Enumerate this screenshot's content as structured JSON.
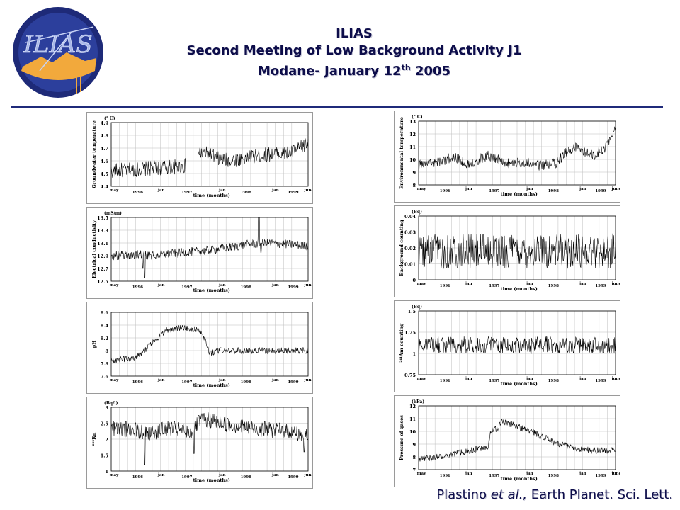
{
  "header": {
    "line1": "ILIAS",
    "line2": "Second Meeting of Low Background Activity J1",
    "line3_pre": "Modane- January 12",
    "line3_sup": "th",
    "line3_post": " 2005"
  },
  "logo": {
    "text": "ILIAS",
    "colors": {
      "ring": "#1e2a78",
      "sky": "#2c3f9c",
      "ground": "#f2a93c",
      "letters": "#a9b8e8"
    }
  },
  "citation": {
    "authors": "Plastino ",
    "etal": "et al.,",
    "journal": " Earth Planet. Sci. Lett."
  },
  "colors": {
    "accent": "#1f2a7a",
    "title_text": "#0d0d4a",
    "series": "#000000",
    "grid": "#bdbdbd"
  },
  "chart_data": [
    {
      "type": "line",
      "ylabel": "Groundwater temperature",
      "unit": "(° C)",
      "ylim": [
        4.4,
        4.9
      ],
      "yticks": [
        "4.9",
        "4.8",
        "4.7",
        "4.6",
        "4.5",
        "4.4"
      ],
      "xticks": [
        "may",
        "1996",
        "jan",
        "1997",
        "jan",
        "1998",
        "jan",
        "1999",
        "june"
      ],
      "xlabel": "time (months)",
      "noise": 0.06,
      "gap": [
        0.38,
        0.44
      ],
      "x": [
        0,
        0.1,
        0.2,
        0.3,
        0.38,
        0.44,
        0.5,
        0.55,
        0.6,
        0.7,
        0.8,
        0.9,
        0.95,
        1.0
      ],
      "y": [
        4.52,
        4.53,
        4.54,
        4.55,
        4.56,
        4.66,
        4.65,
        4.61,
        4.6,
        4.63,
        4.65,
        4.66,
        4.69,
        4.74
      ]
    },
    {
      "type": "line",
      "ylabel": "Environmental temperature",
      "unit": "(° C)",
      "ylim": [
        8,
        13
      ],
      "yticks": [
        "13",
        "12",
        "11",
        "10",
        "9",
        "8"
      ],
      "xticks": [
        "may",
        "1996",
        "jan",
        "1997",
        "jan",
        "1998",
        "jan",
        "1999",
        "june"
      ],
      "xlabel": "time (months)",
      "noise": 0.4,
      "x": [
        0,
        0.1,
        0.18,
        0.25,
        0.35,
        0.45,
        0.55,
        0.6,
        0.7,
        0.75,
        0.8,
        0.85,
        0.9,
        0.95,
        0.98,
        1.0
      ],
      "y": [
        9.6,
        9.8,
        10.2,
        9.6,
        10.3,
        9.7,
        9.8,
        9.5,
        9.7,
        10.6,
        10.9,
        10.5,
        10.3,
        11.0,
        11.8,
        12.5
      ]
    },
    {
      "type": "line",
      "ylabel": "Electrical conductivity",
      "unit": "(mS/m)",
      "ylim": [
        12.5,
        13.5
      ],
      "yticks": [
        "13.5",
        "13.3",
        "13.1",
        "12.9",
        "12.7",
        "12.5"
      ],
      "xticks": [
        "may",
        "1996",
        "jan",
        "1997",
        "jan",
        "1998",
        "jan",
        "1999",
        "june"
      ],
      "xlabel": "time (months)",
      "noise": 0.07,
      "spikes": [
        [
          0.17,
          12.55
        ],
        [
          0.16,
          12.7
        ],
        [
          0.75,
          13.5
        ],
        [
          0.76,
          12.95
        ]
      ],
      "x": [
        0,
        0.15,
        0.2,
        0.3,
        0.4,
        0.5,
        0.6,
        0.7,
        0.8,
        0.9,
        1.0
      ],
      "y": [
        12.9,
        12.92,
        12.9,
        12.93,
        12.96,
        12.98,
        13.03,
        13.08,
        13.1,
        13.08,
        13.05
      ]
    },
    {
      "type": "line",
      "ylabel": "Background counting",
      "unit": "(Bq)",
      "ylim": [
        0,
        0.04
      ],
      "yticks": [
        "0.04",
        "0.03",
        "0.02",
        "0.01",
        "0"
      ],
      "xticks": [
        "may",
        "1996",
        "jan",
        "1997",
        "jan",
        "1998",
        "jan",
        "1999",
        "june"
      ],
      "xlabel": "time (months)",
      "noise": 0.011,
      "x": [
        0,
        0.5,
        1.0
      ],
      "y": [
        0.018,
        0.018,
        0.018
      ]
    },
    {
      "type": "line",
      "ylabel": "pH",
      "unit": "",
      "ylim": [
        7.6,
        8.6
      ],
      "yticks": [
        "8.6",
        "8.4",
        "8.2",
        "8",
        "7.8",
        "7.6"
      ],
      "xticks": [
        "may",
        "1996",
        "jan",
        "1997",
        "jan",
        "1998",
        "jan",
        "1999",
        "june"
      ],
      "xlabel": "time (months)",
      "noise": 0.05,
      "x": [
        0,
        0.1,
        0.15,
        0.22,
        0.28,
        0.35,
        0.42,
        0.46,
        0.5,
        0.55,
        0.7,
        0.85,
        1.0
      ],
      "y": [
        7.85,
        7.87,
        7.95,
        8.15,
        8.32,
        8.36,
        8.34,
        8.3,
        7.95,
        8.0,
        8.0,
        8.0,
        8.0
      ]
    },
    {
      "type": "line",
      "ylabel": "²⁴¹Am counting",
      "unit": "(Bq)",
      "ylim": [
        0.75,
        1.5
      ],
      "yticks": [
        "1.5",
        "1.25",
        "1",
        "0.75"
      ],
      "xticks": [
        "may",
        "1996",
        "jan",
        "1997",
        "jan",
        "1998",
        "jan",
        "1999",
        "june"
      ],
      "xlabel": "time (months)",
      "noise": 0.1,
      "x": [
        0,
        0.5,
        1.0
      ],
      "y": [
        1.1,
        1.1,
        1.1
      ]
    },
    {
      "type": "line",
      "ylabel": "²²²Rn",
      "unit": "(Bq/l)",
      "ylim": [
        1,
        3
      ],
      "yticks": [
        "3",
        "2.5",
        "2",
        "1.5",
        "1"
      ],
      "xticks": [
        "may",
        "1996",
        "jan",
        "1997",
        "jan",
        "1998",
        "jan",
        "1999",
        "june"
      ],
      "xlabel": "time (months)",
      "noise": 0.25,
      "spikes": [
        [
          0.17,
          1.2
        ],
        [
          0.42,
          1.55
        ],
        [
          0.46,
          2.8
        ],
        [
          0.98,
          1.6
        ]
      ],
      "x": [
        0,
        0.1,
        0.2,
        0.3,
        0.4,
        0.45,
        0.5,
        0.6,
        0.7,
        0.8,
        0.9,
        1.0
      ],
      "y": [
        2.35,
        2.3,
        2.2,
        2.35,
        2.2,
        2.55,
        2.6,
        2.45,
        2.35,
        2.3,
        2.25,
        2.1
      ]
    },
    {
      "type": "line",
      "ylabel": "Pressure of gases",
      "unit": "(kPa)",
      "ylim": [
        7,
        12
      ],
      "yticks": [
        "12",
        "11",
        "10",
        "9",
        "8",
        "7"
      ],
      "xticks": [
        "may",
        "1996",
        "jan",
        "1997",
        "jan",
        "1998",
        "jan",
        "1999",
        "june"
      ],
      "xlabel": "time (months)",
      "noise": 0.25,
      "x": [
        0,
        0.1,
        0.2,
        0.3,
        0.35,
        0.37,
        0.4,
        0.42,
        0.5,
        0.6,
        0.7,
        0.8,
        0.9,
        1.0
      ],
      "y": [
        7.8,
        8.0,
        8.3,
        8.6,
        8.7,
        10.2,
        10.2,
        10.8,
        10.4,
        9.8,
        9.1,
        8.6,
        8.5,
        8.5
      ]
    }
  ]
}
